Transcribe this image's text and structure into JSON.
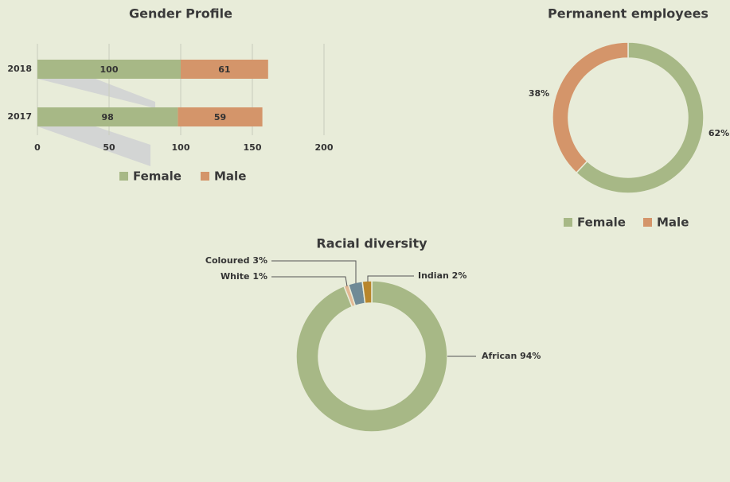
{
  "chart_data": [
    {
      "type": "hbar-stacked",
      "title": "Gender Profile",
      "categories": [
        "2018",
        "2017"
      ],
      "series": [
        {
          "name": "Female",
          "color": "#a7b886",
          "values": [
            100,
            98
          ]
        },
        {
          "name": "Male",
          "color": "#d4956a",
          "values": [
            61,
            59
          ]
        }
      ],
      "xlim": [
        0,
        200
      ],
      "xticks": [
        0,
        50,
        100,
        150,
        200
      ],
      "grid": true,
      "legend": "bottom"
    },
    {
      "type": "donut",
      "title": "Permanent employees",
      "categories": [
        "Female",
        "Male"
      ],
      "values": [
        62,
        38
      ],
      "value_labels": [
        "62%",
        "38%"
      ],
      "colors": [
        "#a7b886",
        "#d4956a"
      ],
      "legend": "bottom"
    },
    {
      "type": "donut",
      "title": "Racial diversity",
      "categories": [
        "African",
        "White",
        "Coloured",
        "Indian"
      ],
      "values": [
        94,
        1,
        3,
        2
      ],
      "value_labels": [
        "94%",
        "1%",
        "3%",
        "2%"
      ],
      "colors": [
        "#a7b886",
        "#e2b894",
        "#6f8a96",
        "#b8862b"
      ]
    }
  ]
}
